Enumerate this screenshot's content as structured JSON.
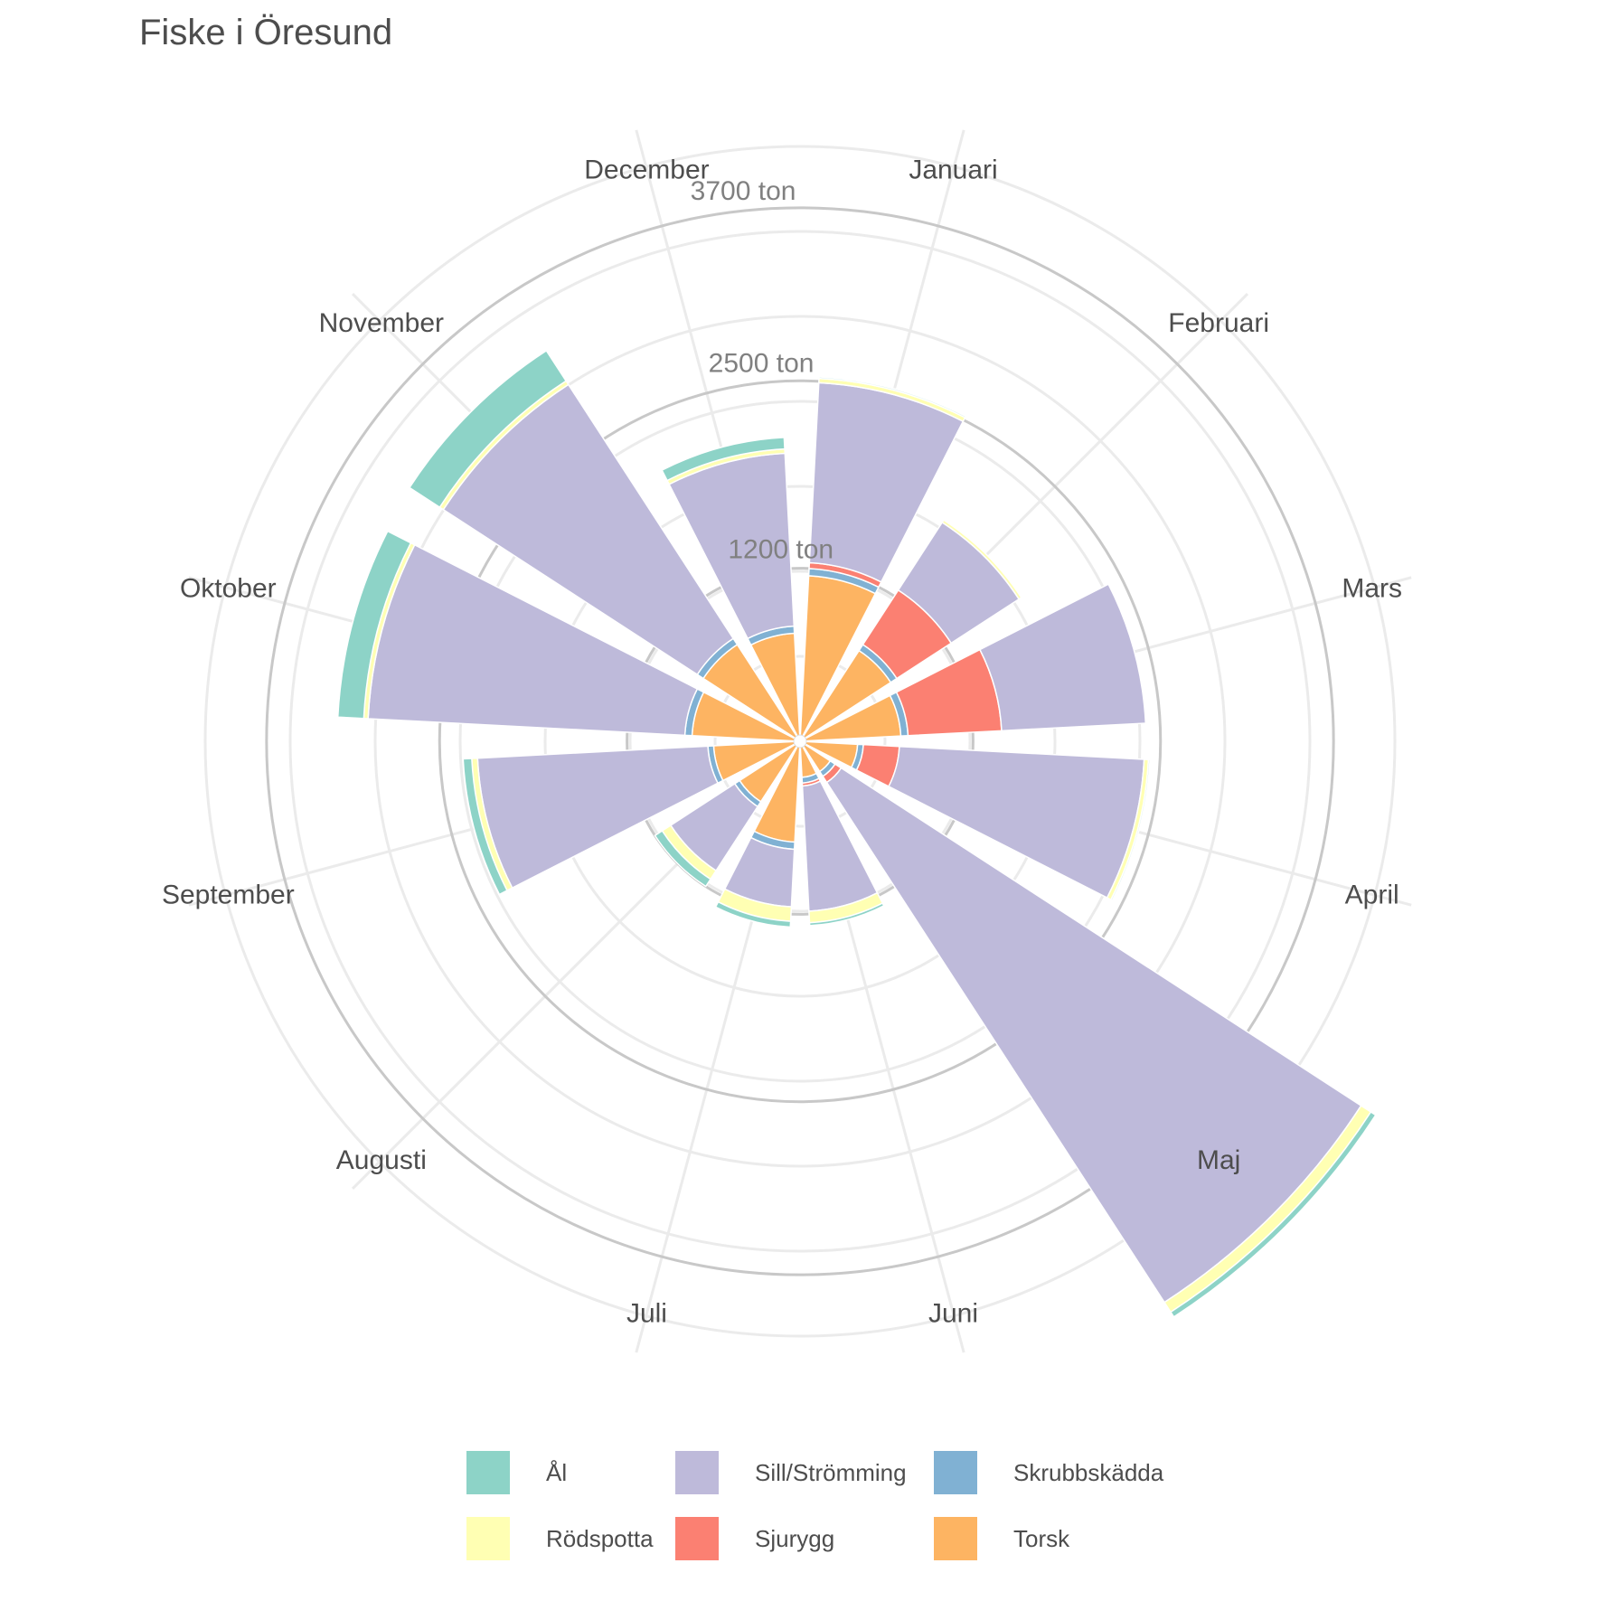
{
  "title": "Fiske i Öresund",
  "chart_data": {
    "type": "stacked-polar-bar",
    "title": "Fiske i Öresund",
    "categories": [
      "Januari",
      "Februari",
      "Mars",
      "April",
      "Maj",
      "Juni",
      "Juli",
      "Augusti",
      "September",
      "Oktober",
      "November",
      "December"
    ],
    "radial_ticks": [
      {
        "value": 1200,
        "label": "1200 ton"
      },
      {
        "value": 2500,
        "label": "2500 ton"
      },
      {
        "value": 3700,
        "label": "3700 ton"
      }
    ],
    "series": [
      {
        "name": "Torsk",
        "color": "#fdb462",
        "values": [
          1150,
          750,
          700,
          400,
          250,
          250,
          700,
          500,
          600,
          750,
          800,
          750
        ]
      },
      {
        "name": "Skrubbskädda",
        "color": "#80b1d3",
        "values": [
          50,
          50,
          50,
          40,
          40,
          40,
          50,
          40,
          40,
          50,
          50,
          50
        ]
      },
      {
        "name": "Sjurygg",
        "color": "#fb8072",
        "values": [
          40,
          450,
          650,
          250,
          50,
          20,
          0,
          0,
          0,
          0,
          0,
          0
        ]
      },
      {
        "name": "Sill/Strömming",
        "color": "#bebada",
        "values": [
          1250,
          560,
          1000,
          1700,
          4300,
          870,
          400,
          530,
          1600,
          2200,
          2100,
          1200
        ]
      },
      {
        "name": "Rödspotta",
        "color": "#ffffb3",
        "values": [
          30,
          20,
          0,
          30,
          80,
          80,
          100,
          70,
          40,
          30,
          30,
          30
        ]
      },
      {
        "name": "Ål",
        "color": "#8dd3c7",
        "values": [
          10,
          0,
          0,
          10,
          40,
          20,
          40,
          60,
          60,
          180,
          250,
          80
        ]
      }
    ],
    "legend": {
      "position": "bottom",
      "columns": 3,
      "order": [
        "Ål",
        "Rödspotta",
        "Sill/Strömming",
        "Sjurygg",
        "Skrubbskädda",
        "Torsk"
      ]
    }
  }
}
